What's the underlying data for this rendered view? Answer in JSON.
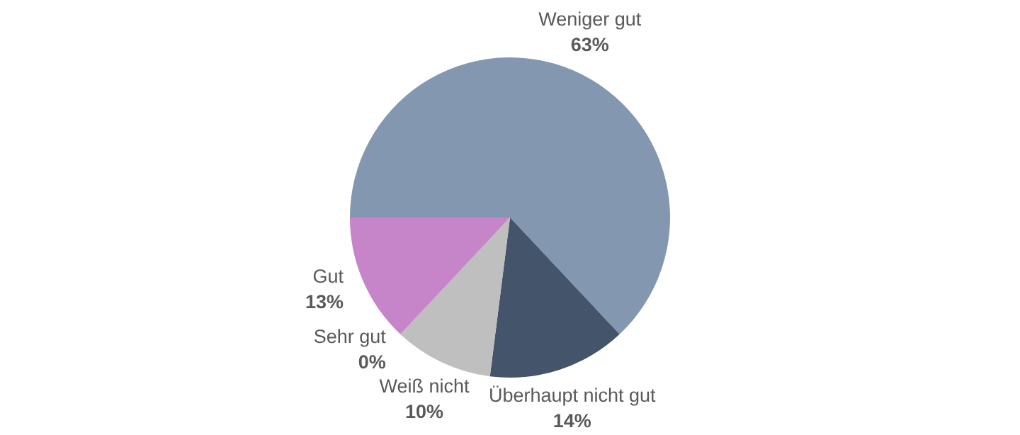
{
  "chart_data": {
    "type": "pie",
    "categories": [
      "Weniger gut",
      "Überhaupt nicht gut",
      "Weiß nicht",
      "Sehr gut",
      "Gut"
    ],
    "values": [
      63,
      14,
      10,
      0,
      13
    ],
    "colors": [
      "#8497b0",
      "#44546a",
      "#bfbfbf",
      "#7030a0",
      "#c585c8"
    ],
    "value_labels": [
      "63%",
      "14%",
      "10%",
      "0%",
      "13%"
    ]
  }
}
